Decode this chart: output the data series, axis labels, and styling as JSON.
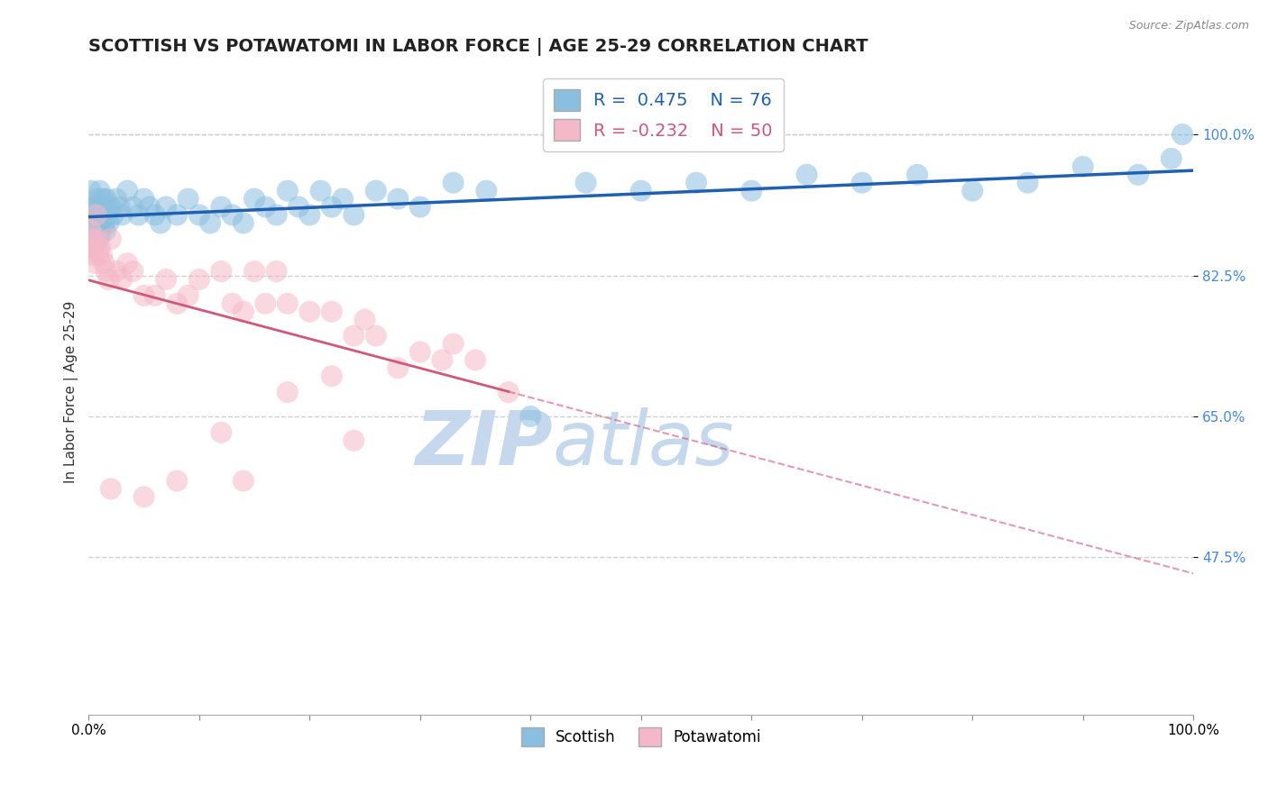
{
  "title": "SCOTTISH VS POTAWATOMI IN LABOR FORCE | AGE 25-29 CORRELATION CHART",
  "source_text": "Source: ZipAtlas.com",
  "ylabel": "In Labor Force | Age 25-29",
  "xlim": [
    0.0,
    1.0
  ],
  "ylim": [
    0.28,
    1.08
  ],
  "yticks": [
    0.475,
    0.65,
    0.825,
    1.0
  ],
  "ytick_labels": [
    "47.5%",
    "65.0%",
    "82.5%",
    "100.0%"
  ],
  "xtick_labels": [
    "0.0%",
    "100.0%"
  ],
  "scottish_color": "#8bbfdf",
  "potawatomi_color": "#f5b8c8",
  "trend_scottish_color": "#2060b0",
  "trend_potawatomi_color": "#d05878",
  "watermark_zip_color": "#c5d8ee",
  "watermark_atlas_color": "#c5d8ee",
  "background_color": "#ffffff",
  "grid_color": "#d0d0d0",
  "title_fontsize": 14,
  "axis_label_fontsize": 11,
  "tick_label_fontsize": 11,
  "legend_fontsize": 14,
  "scottish_x": [
    0.002,
    0.003,
    0.004,
    0.004,
    0.005,
    0.005,
    0.006,
    0.006,
    0.007,
    0.007,
    0.008,
    0.008,
    0.009,
    0.009,
    0.01,
    0.01,
    0.011,
    0.011,
    0.012,
    0.012,
    0.013,
    0.013,
    0.014,
    0.015,
    0.016,
    0.017,
    0.018,
    0.02,
    0.022,
    0.025,
    0.028,
    0.03,
    0.035,
    0.04,
    0.045,
    0.05,
    0.055,
    0.06,
    0.065,
    0.07,
    0.08,
    0.09,
    0.1,
    0.11,
    0.12,
    0.13,
    0.14,
    0.15,
    0.16,
    0.17,
    0.18,
    0.19,
    0.2,
    0.21,
    0.22,
    0.23,
    0.24,
    0.26,
    0.28,
    0.3,
    0.33,
    0.36,
    0.4,
    0.45,
    0.5,
    0.55,
    0.6,
    0.65,
    0.7,
    0.75,
    0.8,
    0.85,
    0.9,
    0.95,
    0.98,
    0.99
  ],
  "scottish_y": [
    0.93,
    0.91,
    0.89,
    0.88,
    0.87,
    0.86,
    0.9,
    0.88,
    0.91,
    0.89,
    0.92,
    0.9,
    0.88,
    0.87,
    0.93,
    0.91,
    0.9,
    0.88,
    0.91,
    0.9,
    0.92,
    0.91,
    0.89,
    0.88,
    0.92,
    0.9,
    0.89,
    0.91,
    0.9,
    0.92,
    0.91,
    0.9,
    0.93,
    0.91,
    0.9,
    0.92,
    0.91,
    0.9,
    0.89,
    0.91,
    0.9,
    0.92,
    0.9,
    0.89,
    0.91,
    0.9,
    0.89,
    0.92,
    0.91,
    0.9,
    0.93,
    0.91,
    0.9,
    0.93,
    0.91,
    0.92,
    0.9,
    0.93,
    0.92,
    0.91,
    0.94,
    0.93,
    0.65,
    0.94,
    0.93,
    0.94,
    0.93,
    0.95,
    0.94,
    0.95,
    0.93,
    0.94,
    0.96,
    0.95,
    0.97,
    1.0
  ],
  "potawatomi_x": [
    0.002,
    0.003,
    0.004,
    0.005,
    0.006,
    0.007,
    0.008,
    0.009,
    0.01,
    0.012,
    0.014,
    0.016,
    0.018,
    0.02,
    0.025,
    0.03,
    0.035,
    0.04,
    0.05,
    0.06,
    0.07,
    0.08,
    0.09,
    0.1,
    0.12,
    0.13,
    0.14,
    0.15,
    0.16,
    0.17,
    0.18,
    0.2,
    0.22,
    0.24,
    0.25,
    0.26,
    0.28,
    0.3,
    0.32,
    0.33,
    0.35,
    0.38,
    0.12,
    0.18,
    0.22,
    0.24,
    0.14,
    0.08,
    0.05,
    0.02
  ],
  "potawatomi_y": [
    0.88,
    0.87,
    0.86,
    0.85,
    0.84,
    0.9,
    0.87,
    0.85,
    0.86,
    0.85,
    0.84,
    0.83,
    0.82,
    0.87,
    0.83,
    0.82,
    0.84,
    0.83,
    0.8,
    0.8,
    0.82,
    0.79,
    0.8,
    0.82,
    0.83,
    0.79,
    0.78,
    0.83,
    0.79,
    0.83,
    0.79,
    0.78,
    0.78,
    0.75,
    0.77,
    0.75,
    0.71,
    0.73,
    0.72,
    0.74,
    0.72,
    0.68,
    0.63,
    0.68,
    0.7,
    0.62,
    0.57,
    0.57,
    0.55,
    0.56
  ]
}
